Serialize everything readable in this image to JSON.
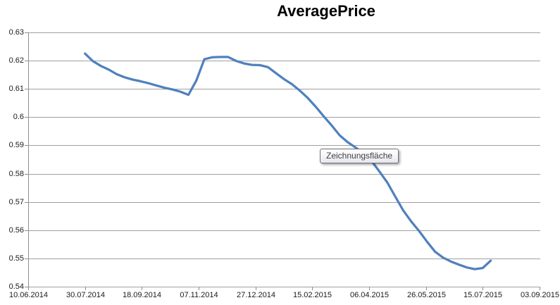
{
  "chart": {
    "background": "#ffffff",
    "gridline_color": "#a0a0a0",
    "axis_color": "#8e8e8e",
    "label_color": "#1a1a1a",
    "accent_color": "#4f81bd"
  },
  "chart_data": {
    "type": "line",
    "title": "AveragePrice",
    "xlabel": "",
    "ylabel": "",
    "grid": true,
    "legend": false,
    "x_axis": {
      "tick_labels": [
        "10.06.2014",
        "30.07.2014",
        "18.09.2014",
        "07.11.2014",
        "27.12.2014",
        "15.02.2015",
        "06.04.2015",
        "26.05.2015",
        "15.07.2015",
        "03.09.2015"
      ]
    },
    "y_axis": {
      "tick_labels": [
        "0.63",
        "0.62",
        "0.61",
        "0.6",
        "0.59",
        "0.58",
        "0.57",
        "0.56",
        "0.55",
        "0.54"
      ],
      "min": 0.54,
      "max": 0.63,
      "step": 0.01
    },
    "series": [
      {
        "name": "AveragePrice",
        "color": "#4f81bd",
        "points": [
          {
            "date": "30.07.2014",
            "value": 0.6225
          },
          {
            "date": "06.08.2014",
            "value": 0.6198
          },
          {
            "date": "13.08.2014",
            "value": 0.6181
          },
          {
            "date": "20.08.2014",
            "value": 0.6168
          },
          {
            "date": "27.08.2014",
            "value": 0.6152
          },
          {
            "date": "03.09.2014",
            "value": 0.6141
          },
          {
            "date": "10.09.2014",
            "value": 0.6133
          },
          {
            "date": "17.09.2014",
            "value": 0.6127
          },
          {
            "date": "24.09.2014",
            "value": 0.612
          },
          {
            "date": "01.10.2014",
            "value": 0.6112
          },
          {
            "date": "08.10.2014",
            "value": 0.6104
          },
          {
            "date": "15.10.2014",
            "value": 0.6098
          },
          {
            "date": "22.10.2014",
            "value": 0.609
          },
          {
            "date": "29.10.2014",
            "value": 0.6079
          },
          {
            "date": "05.11.2014",
            "value": 0.613
          },
          {
            "date": "12.11.2014",
            "value": 0.6205
          },
          {
            "date": "19.11.2014",
            "value": 0.6212
          },
          {
            "date": "26.11.2014",
            "value": 0.6213
          },
          {
            "date": "03.12.2014",
            "value": 0.6213
          },
          {
            "date": "10.12.2014",
            "value": 0.6199
          },
          {
            "date": "17.12.2014",
            "value": 0.619
          },
          {
            "date": "24.12.2014",
            "value": 0.6185
          },
          {
            "date": "31.12.2014",
            "value": 0.6184
          },
          {
            "date": "07.01.2015",
            "value": 0.6177
          },
          {
            "date": "14.01.2015",
            "value": 0.6156
          },
          {
            "date": "21.01.2015",
            "value": 0.6135
          },
          {
            "date": "28.01.2015",
            "value": 0.6117
          },
          {
            "date": "04.02.2015",
            "value": 0.6094
          },
          {
            "date": "11.02.2015",
            "value": 0.6068
          },
          {
            "date": "18.02.2015",
            "value": 0.6037
          },
          {
            "date": "25.02.2015",
            "value": 0.6003
          },
          {
            "date": "04.03.2015",
            "value": 0.5971
          },
          {
            "date": "11.03.2015",
            "value": 0.5936
          },
          {
            "date": "18.03.2015",
            "value": 0.5912
          },
          {
            "date": "25.03.2015",
            "value": 0.5893
          },
          {
            "date": "01.04.2015",
            "value": 0.5873
          },
          {
            "date": "08.04.2015",
            "value": 0.5846
          },
          {
            "date": "15.04.2015",
            "value": 0.5808
          },
          {
            "date": "22.04.2015",
            "value": 0.5769
          },
          {
            "date": "29.04.2015",
            "value": 0.5719
          },
          {
            "date": "06.05.2015",
            "value": 0.567
          },
          {
            "date": "13.05.2015",
            "value": 0.5631
          },
          {
            "date": "20.05.2015",
            "value": 0.5597
          },
          {
            "date": "27.05.2015",
            "value": 0.5559
          },
          {
            "date": "03.06.2015",
            "value": 0.5524
          },
          {
            "date": "10.06.2015",
            "value": 0.5503
          },
          {
            "date": "17.06.2015",
            "value": 0.5489
          },
          {
            "date": "24.06.2015",
            "value": 0.5478
          },
          {
            "date": "01.07.2015",
            "value": 0.5468
          },
          {
            "date": "08.07.2015",
            "value": 0.5462
          },
          {
            "date": "15.07.2015",
            "value": 0.5466
          },
          {
            "date": "22.07.2015",
            "value": 0.5492
          }
        ]
      }
    ],
    "annotations": [
      {
        "type": "tooltip",
        "text": "Zeichnungsfläche"
      }
    ]
  }
}
